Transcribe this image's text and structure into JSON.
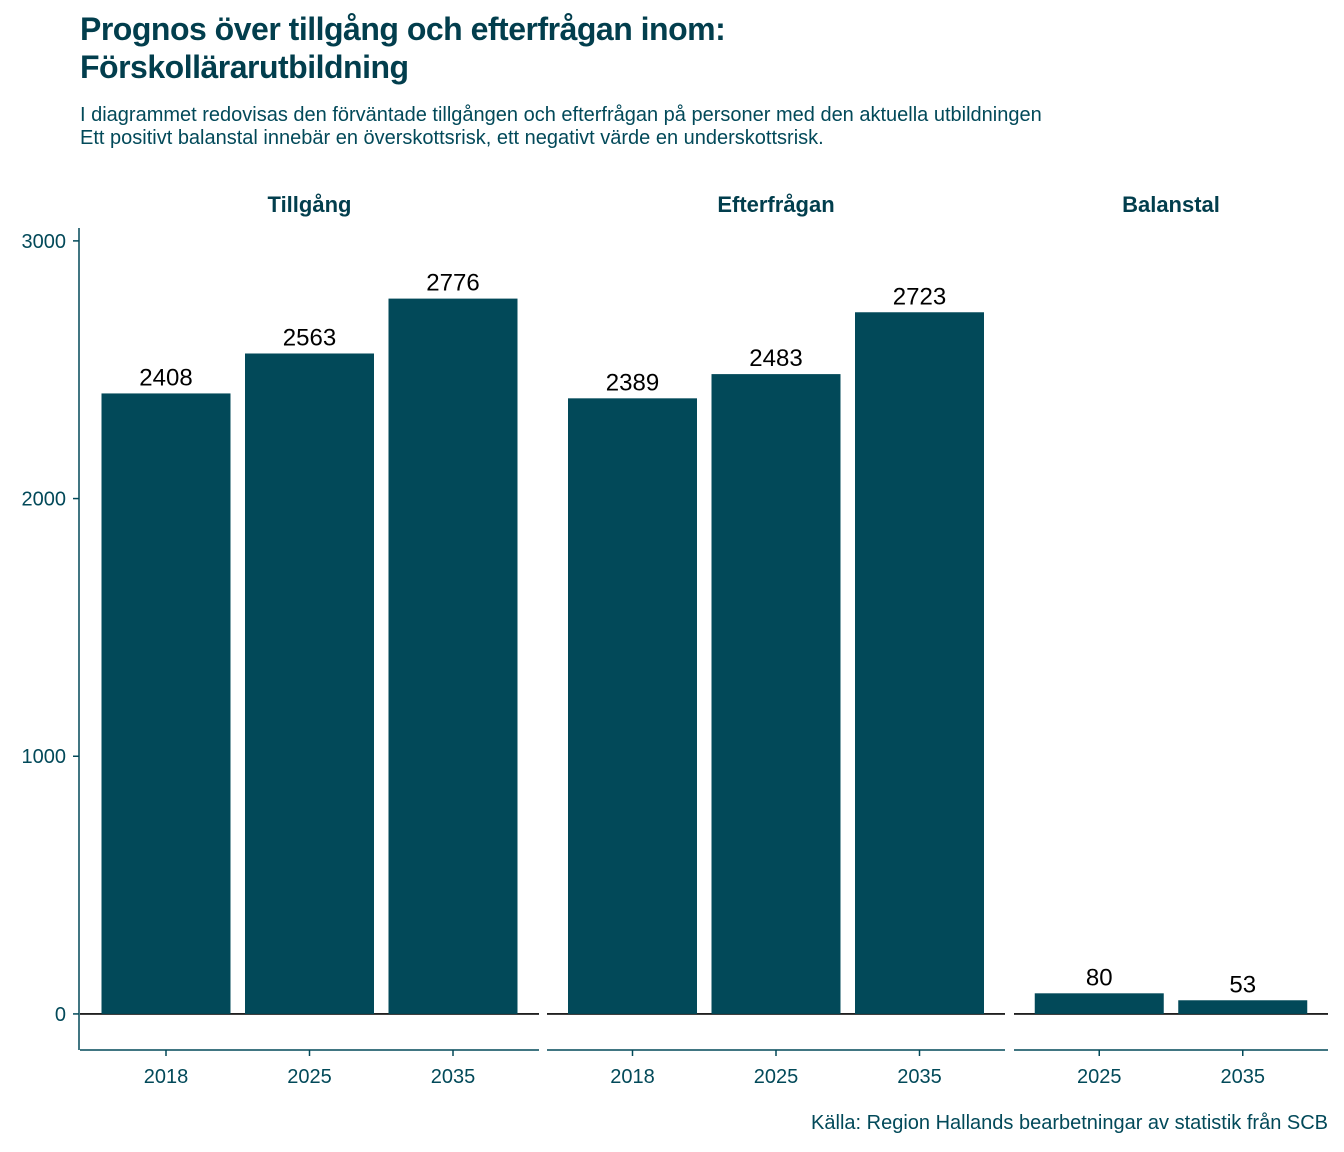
{
  "title_lines": [
    "Prognos över tillgång och efterfrågan inom:",
    "Förskollärarutbildning"
  ],
  "subtitle_lines": [
    "I diagrammet redovisas den förväntade tillgången och efterfrågan på personer med den aktuella utbildningen",
    "Ett positivt balanstal innebär en överskottsrisk, ett negativt värde en underskottsrisk."
  ],
  "caption": "Källa: Region Hallands bearbetningar av statistik från SCB",
  "colors": {
    "bar": "#024959",
    "text": "#024959",
    "axis": "#024959"
  },
  "chart_data": {
    "type": "bar",
    "ylim": [
      -140,
      3050
    ],
    "y_ticks": [
      0,
      1000,
      2000,
      3000
    ],
    "grid": false,
    "facets": [
      {
        "name": "Tillgång",
        "categories": [
          "2018",
          "2025",
          "2035"
        ],
        "values": [
          2408,
          2563,
          2776
        ]
      },
      {
        "name": "Efterfrågan",
        "categories": [
          "2018",
          "2025",
          "2035"
        ],
        "values": [
          2389,
          2483,
          2723
        ]
      },
      {
        "name": "Balanstal",
        "categories": [
          "2025",
          "2035"
        ],
        "values": [
          80,
          53
        ]
      }
    ]
  }
}
